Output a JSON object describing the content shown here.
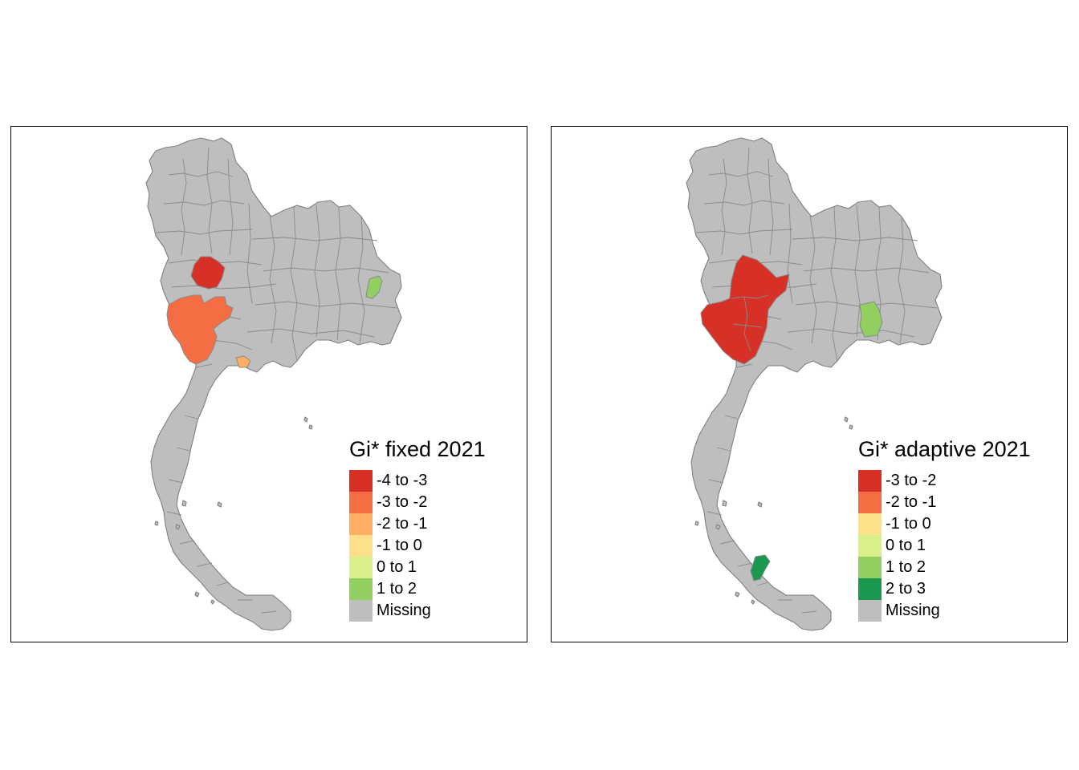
{
  "panels": [
    {
      "legend": {
        "title": "Gi* fixed  2021",
        "items": [
          {
            "label": "-4 to -3",
            "color": "#d73027"
          },
          {
            "label": "-3 to -2",
            "color": "#f46d43"
          },
          {
            "label": "-2 to -1",
            "color": "#fdae61"
          },
          {
            "label": "-1 to 0",
            "color": "#fee08b"
          },
          {
            "label": "0 to 1",
            "color": "#d9ef8b"
          },
          {
            "label": "1 to 2",
            "color": "#91cf60"
          },
          {
            "label": "Missing",
            "color": "#bebebe"
          }
        ]
      },
      "highlighted_areas": [
        {
          "class": "-4 to -3",
          "color": "#d73027"
        },
        {
          "class": "-3 to -2",
          "color": "#f46d43"
        },
        {
          "class": "-2 to -1",
          "color": "#fdae61"
        },
        {
          "class": "1 to 2",
          "color": "#91cf60"
        }
      ]
    },
    {
      "legend": {
        "title": "Gi* adaptive 2021",
        "items": [
          {
            "label": "-3 to -2",
            "color": "#d73027"
          },
          {
            "label": "-2 to -1",
            "color": "#f46d43"
          },
          {
            "label": "-1 to 0",
            "color": "#fee08b"
          },
          {
            "label": "0 to 1",
            "color": "#d9ef8b"
          },
          {
            "label": "1 to 2",
            "color": "#91cf60"
          },
          {
            "label": "2 to 3",
            "color": "#1a9850"
          },
          {
            "label": "Missing",
            "color": "#bebebe"
          }
        ]
      },
      "highlighted_areas": [
        {
          "class": "-3 to -2",
          "color": "#d73027"
        },
        {
          "class": "1 to 2",
          "color": "#91cf60"
        },
        {
          "class": "2 to 3",
          "color": "#1a9850"
        }
      ]
    }
  ]
}
